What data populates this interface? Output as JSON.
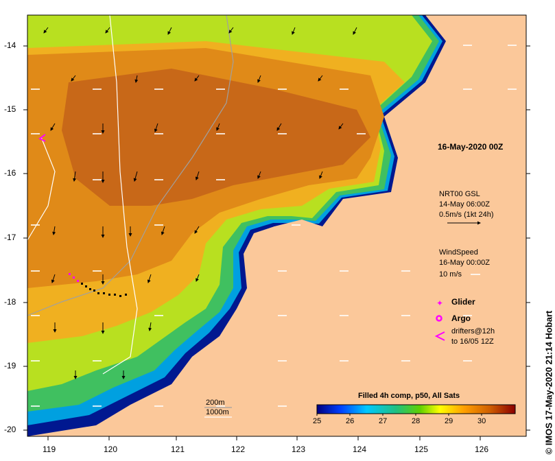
{
  "map": {
    "lon_ticks": [
      "119",
      "120",
      "121",
      "122",
      "123",
      "124",
      "125",
      "126"
    ],
    "lat_ticks": [
      "-14",
      "-15",
      "-16",
      "-17",
      "-18",
      "-19",
      "-20"
    ]
  },
  "annotations": {
    "timestamp": "16-May-2020 00Z",
    "current_source": "NRT00 GSL",
    "current_time": "14-May 06:00Z",
    "current_scale": "0.5m/s (1kt 24h)",
    "wind_title": "WindSpeed",
    "wind_time": "16-May 00:00Z",
    "wind_scale": "10 m/s",
    "legend_glider": "Glider",
    "legend_argo": "Argo",
    "legend_drifters_1": "drifters@12h",
    "legend_drifters_2": "to 16/05 12Z",
    "contour_200": "200m",
    "contour_1000": "1000m"
  },
  "colorbar": {
    "title": "Filled 4h comp, p50, All Sats",
    "labels": [
      "25",
      "26",
      "27",
      "28",
      "29",
      "30"
    ],
    "colors": [
      "#00007f",
      "#0040ff",
      "#00c8ff",
      "#20c080",
      "#60d000",
      "#ffff00",
      "#ffa000",
      "#d06000",
      "#8b0000"
    ]
  },
  "credit": "© IMOS 17-May-2020 21:14 Hobart",
  "colors": {
    "land": "#fbc89a",
    "warm": "#e08a18",
    "hot": "#c86818",
    "mid": "#f0b020",
    "cool": "#b8e020",
    "green": "#40c060",
    "cyan": "#00a0e0",
    "deep": "#001890",
    "glider": "#ff00ff"
  }
}
